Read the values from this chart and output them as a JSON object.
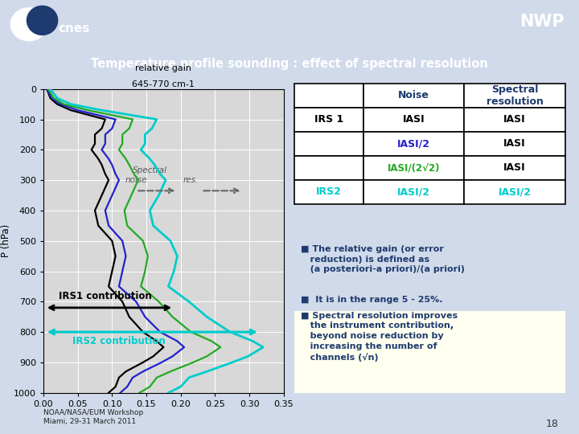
{
  "title": "Temperature profile sounding : effect of spectral resolution",
  "nwp_label": "NWP",
  "header_color": "#1e3a6e",
  "title_bar_color": "#2a52a0",
  "bg_color": "#d0daea",
  "plot_bg": "#d8d8d8",
  "grid_color": "#ffffff",
  "ylabel": "P (hPa)",
  "xlim": [
    0.0,
    0.35
  ],
  "ylim": [
    1000,
    0
  ],
  "yticks": [
    0,
    100,
    200,
    300,
    400,
    500,
    600,
    700,
    800,
    900,
    1000
  ],
  "xticks": [
    0.0,
    0.05,
    0.1,
    0.15,
    0.2,
    0.25,
    0.3,
    0.35
  ],
  "xtick_labels": [
    "0.00",
    "0.05",
    "0.10",
    "0.15",
    "0.20",
    "0.25",
    "0.30",
    "0.35"
  ],
  "line_black_color": "#000000",
  "line_blue_color": "#2222cc",
  "line_green_color": "#22aa22",
  "line_cyan_color": "#00cccc",
  "table_header_color": "#1e3a6e",
  "table_black_color": "#000000",
  "table_blue_color": "#2222cc",
  "table_green_color": "#22aa22",
  "table_cyan_color": "#00cccc",
  "bullet_color": "#1e3a6e",
  "highlight_bg": "#fffff0",
  "footer_text": "NOAA/NASA/EUM Workshop\nMiami, 29-31 March 2011",
  "page_number": "18"
}
